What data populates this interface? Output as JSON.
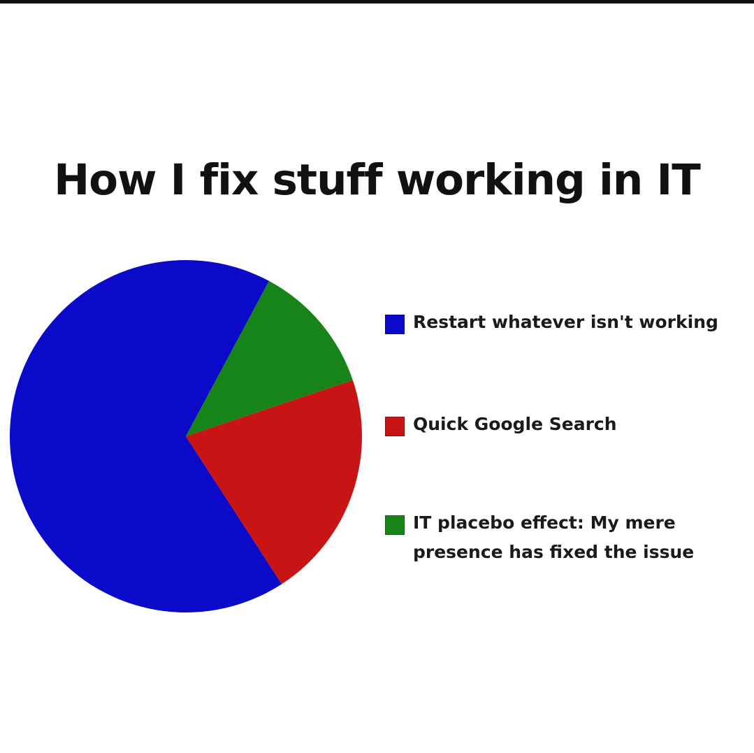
{
  "chart_data": {
    "type": "pie",
    "title": "How I fix stuff working in IT",
    "legend_position": "right",
    "categories": [
      "Restart whatever isn't working",
      "Quick Google Search",
      "IT placebo effect: My mere presence has fixed the issue"
    ],
    "values": [
      67,
      21,
      12
    ],
    "unit": "percent",
    "colors": [
      "#0a0ac8",
      "#c81414",
      "#17841a"
    ]
  },
  "frame": {
    "top_bar_color": "#111111",
    "background": "#ffffff"
  }
}
